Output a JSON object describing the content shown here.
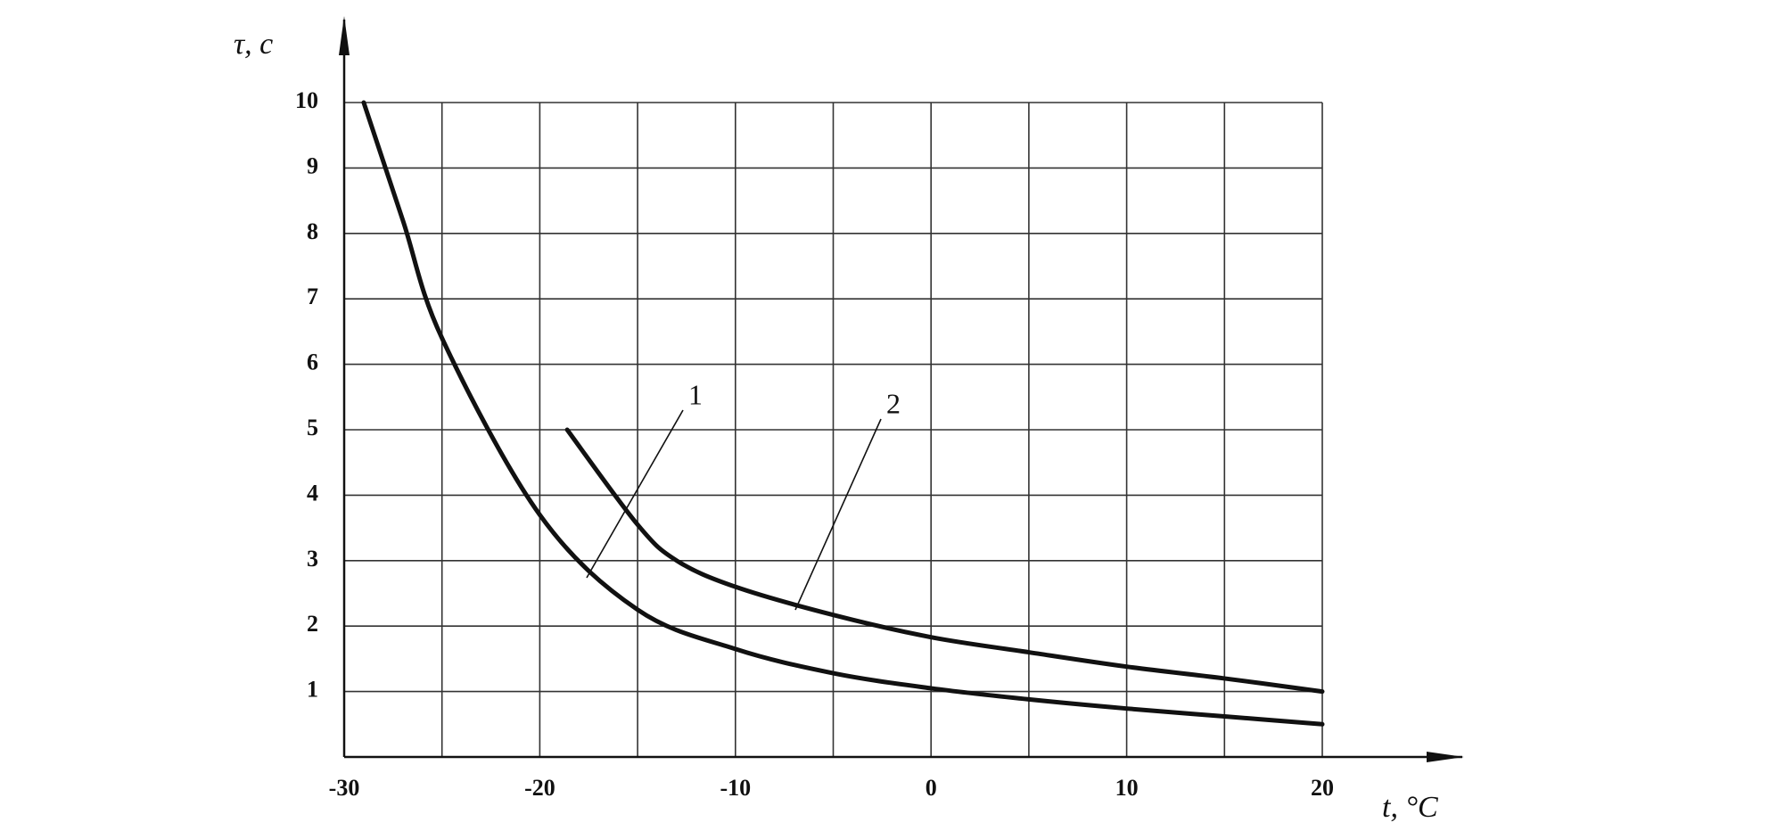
{
  "chart_data": {
    "type": "line",
    "y_label": "τ, c",
    "x_label": "t, °C",
    "xlim": [
      -30,
      20
    ],
    "ylim": [
      0,
      10
    ],
    "xticks": [
      -30,
      -20,
      -10,
      0,
      10,
      20
    ],
    "xminor": [
      -25,
      -15,
      -5,
      5,
      15
    ],
    "yticks": [
      1,
      2,
      3,
      4,
      5,
      6,
      7,
      8,
      9,
      10
    ],
    "grid": true,
    "series": [
      {
        "name": "1",
        "color": "#111111",
        "x": [
          -29,
          -27,
          -25,
          -20,
          -15,
          -10,
          -5,
          0,
          5,
          10,
          15,
          20
        ],
        "values": [
          10,
          8.2,
          6.4,
          3.7,
          2.25,
          1.65,
          1.28,
          1.05,
          0.88,
          0.74,
          0.62,
          0.5
        ]
      },
      {
        "name": "2",
        "color": "#111111",
        "x": [
          -18.6,
          -15,
          -13,
          -10,
          -5,
          0,
          5,
          10,
          15,
          20
        ],
        "values": [
          5,
          3.55,
          3.0,
          2.6,
          2.17,
          1.83,
          1.6,
          1.38,
          1.2,
          1.0
        ]
      }
    ]
  }
}
